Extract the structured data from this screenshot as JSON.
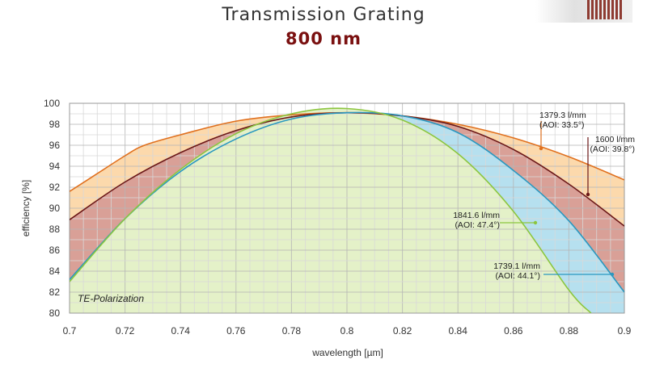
{
  "chart_data": {
    "type": "line",
    "title": "Transmission Grating",
    "subtitle": "800 nm",
    "xlabel": "wavelength [µm]",
    "ylabel": "efficiency [%]",
    "xlim": [
      0.7,
      0.9
    ],
    "ylim": [
      80,
      100
    ],
    "x_ticks": [
      "0.7",
      "0.72",
      "0.74",
      "0.76",
      "0.78",
      "0.8",
      "0.82",
      "0.84",
      "0.86",
      "0.88",
      "0.9"
    ],
    "y_ticks": [
      "80",
      "82",
      "84",
      "86",
      "88",
      "90",
      "92",
      "94",
      "96",
      "98",
      "100"
    ],
    "grid": true,
    "note": "TE-Polarization",
    "series": [
      {
        "name": "1379.3 l/mm (AOI: 33.5°)",
        "color": "#e0701e",
        "fill": "#fcd9ac",
        "x": [
          0.7,
          0.71,
          0.72,
          0.727,
          0.74,
          0.76,
          0.78,
          0.8,
          0.82,
          0.84,
          0.86,
          0.88,
          0.9
        ],
        "y": [
          91.6,
          93.3,
          95.0,
          96.0,
          97.0,
          98.3,
          98.9,
          99.1,
          98.8,
          98.0,
          96.7,
          94.9,
          92.7
        ]
      },
      {
        "name": "1600 l/mm (AOI: 39.8°)",
        "color": "#6b1818",
        "fill": "#d9a097",
        "x": [
          0.7,
          0.72,
          0.74,
          0.76,
          0.78,
          0.8,
          0.82,
          0.84,
          0.86,
          0.88,
          0.9
        ],
        "y": [
          88.9,
          92.5,
          95.3,
          97.4,
          98.7,
          99.1,
          98.8,
          97.8,
          95.6,
          92.3,
          88.3
        ]
      },
      {
        "name": "1739.1 l/mm (AOI: 44.1°)",
        "color": "#2a98c0",
        "fill": "#b6e0ef",
        "x": [
          0.7,
          0.72,
          0.74,
          0.76,
          0.78,
          0.8,
          0.82,
          0.84,
          0.86,
          0.88,
          0.9
        ],
        "y": [
          83.2,
          89.0,
          93.5,
          96.6,
          98.5,
          99.1,
          98.8,
          97.2,
          93.6,
          88.8,
          82.0
        ]
      },
      {
        "name": "1841.6 l/mm (AOI: 47.4°)",
        "color": "#8cc63f",
        "fill": "#e4f1c8",
        "x": [
          0.7,
          0.72,
          0.74,
          0.76,
          0.78,
          0.8,
          0.82,
          0.84,
          0.86,
          0.88,
          0.888
        ],
        "y": [
          83.0,
          89.0,
          93.7,
          97.1,
          99.0,
          99.5,
          98.4,
          95.2,
          89.7,
          82.2,
          80.0
        ]
      }
    ],
    "annotations": [
      {
        "line1": "1379.3 l/mm",
        "line2": "(AOI: 33.5°)"
      },
      {
        "line1": "1600 l/mm",
        "line2": "(AOI: 39.8°)"
      },
      {
        "line1": "1841.6 l/mm",
        "line2": "(AOI: 47.4°)"
      },
      {
        "line1": "1739.1 l/mm",
        "line2": "(AOI: 44.1°)"
      }
    ]
  }
}
